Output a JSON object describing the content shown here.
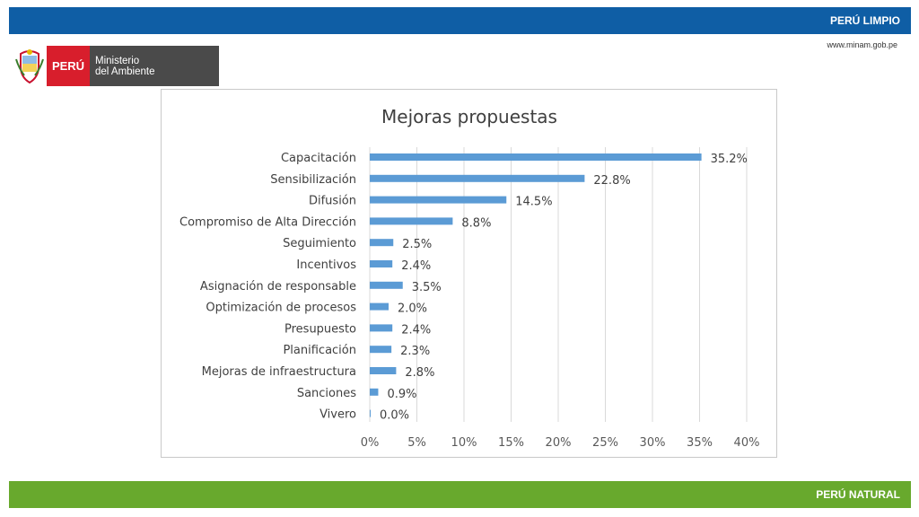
{
  "header": {
    "title": "PERÚ LIMPIO",
    "url": "www.minam.gob.pe"
  },
  "logo": {
    "country": "PERÚ",
    "ministry_line1": "Ministerio",
    "ministry_line2": "del Ambiente"
  },
  "footer": {
    "title": "PERÚ NATURAL"
  },
  "colors": {
    "top_bar": "#0f5ea5",
    "bottom_bar": "#68a92d",
    "bar": "#5b9bd5",
    "peru_red": "#d81e2c",
    "ministry_gray": "#4a4a4a"
  },
  "chart_data": {
    "type": "bar",
    "orientation": "horizontal",
    "title": "Mejoras propuestas",
    "categories": [
      "Capacitación",
      "Sensibilización",
      "Difusión",
      "Compromiso de Alta Dirección",
      "Seguimiento",
      "Incentivos",
      "Asignación de responsable",
      "Optimización de procesos",
      "Presupuesto",
      "Planificación",
      "Mejoras de infraestructura",
      "Sanciones",
      "Vivero"
    ],
    "values": [
      35.2,
      22.8,
      14.5,
      8.8,
      2.5,
      2.4,
      3.5,
      2.0,
      2.4,
      2.3,
      2.8,
      0.9,
      0.0
    ],
    "data_labels": [
      "35.2%",
      "22.8%",
      "14.5%",
      "8.8%",
      "2.5%",
      "2.4%",
      "3.5%",
      "2.0%",
      "2.4%",
      "2.3%",
      "2.8%",
      "0.9%",
      "0.0%"
    ],
    "xlim": [
      0,
      40
    ],
    "xticks": [
      0,
      5,
      10,
      15,
      20,
      25,
      30,
      35,
      40
    ],
    "xtick_labels": [
      "0%",
      "5%",
      "10%",
      "15%",
      "20%",
      "25%",
      "30%",
      "35%",
      "40%"
    ],
    "grid": true,
    "legend": "none"
  }
}
